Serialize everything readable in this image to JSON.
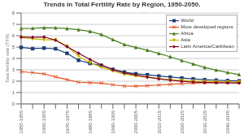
{
  "chart_data": {
    "type": "line",
    "title": "Trends in Total Fertility Rate by Region, 1950-2050.",
    "ylabel": "Total fertility rate (TFR)",
    "categories": [
      "1950-1955",
      null,
      "1960-1965",
      null,
      "1970-1975",
      null,
      "1980-1985",
      null,
      "1990-1995",
      null,
      "2000-2005",
      null,
      "2010-2015",
      null,
      "2020-2025",
      null,
      "2030-2035",
      null,
      "2040-2045",
      null
    ],
    "series": [
      {
        "name": "World",
        "color": "#1f3d7a",
        "marker": "square",
        "values": [
          4.97,
          4.86,
          4.91,
          4.85,
          4.45,
          3.84,
          3.56,
          3.38,
          3.04,
          2.79,
          2.65,
          2.56,
          2.45,
          2.36,
          2.28,
          2.2,
          2.13,
          2.09,
          2.05,
          2.02
        ]
      },
      {
        "name": "More developed regions",
        "color": "#e05020",
        "marker": "x",
        "values": [
          2.84,
          2.75,
          2.64,
          2.38,
          2.13,
          1.91,
          1.86,
          1.83,
          1.68,
          1.57,
          1.56,
          1.6,
          1.66,
          1.72,
          1.77,
          1.82,
          1.86,
          1.88,
          1.9,
          1.91
        ]
      },
      {
        "name": "Africa",
        "color": "#4a8020",
        "marker": "triangle-up",
        "values": [
          6.63,
          6.65,
          6.7,
          6.69,
          6.63,
          6.53,
          6.38,
          6.1,
          5.65,
          5.22,
          4.97,
          4.72,
          4.44,
          4.14,
          3.82,
          3.51,
          3.21,
          2.97,
          2.76,
          2.58
        ]
      },
      {
        "name": "Asia",
        "color": "#c8b800",
        "marker": "triangle-down",
        "values": [
          5.85,
          5.72,
          5.65,
          5.64,
          5.07,
          4.19,
          3.62,
          3.22,
          2.9,
          2.61,
          2.46,
          2.34,
          2.22,
          2.13,
          2.07,
          2.01,
          1.97,
          1.95,
          1.93,
          1.92
        ]
      },
      {
        "name": "Latin America/Caribbean",
        "color": "#800020",
        "marker": "diamond",
        "values": [
          5.88,
          5.86,
          5.89,
          5.6,
          5.04,
          4.47,
          3.91,
          3.42,
          3.0,
          2.72,
          2.55,
          2.36,
          2.2,
          2.09,
          1.99,
          1.92,
          1.88,
          1.86,
          1.84,
          1.83
        ]
      }
    ],
    "ylim": [
      0,
      8
    ],
    "yticks": [
      0,
      1,
      2,
      3,
      4,
      5,
      6,
      7,
      8
    ],
    "grid": true,
    "legend": "upper right"
  }
}
